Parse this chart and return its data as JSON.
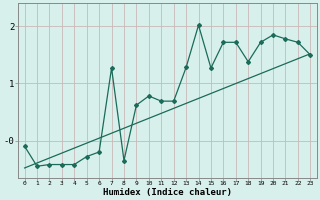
{
  "title": "",
  "xlabel": "Humidex (Indice chaleur)",
  "ylabel": "",
  "bg_color": "#d8f0ec",
  "grid_color": "#c8b8b8",
  "line_color": "#1a6b5a",
  "xlim": [
    -0.5,
    23.5
  ],
  "ylim": [
    -0.65,
    2.4
  ],
  "xticks": [
    0,
    1,
    2,
    3,
    4,
    5,
    6,
    7,
    8,
    9,
    10,
    11,
    12,
    13,
    14,
    15,
    16,
    17,
    18,
    19,
    20,
    21,
    22,
    23
  ],
  "yticks": [
    0,
    1,
    2
  ],
  "ytick_labels": [
    "-0",
    "1",
    "2"
  ],
  "data_x": [
    0,
    1,
    2,
    3,
    4,
    5,
    6,
    7,
    8,
    9,
    10,
    11,
    12,
    13,
    14,
    15,
    16,
    17,
    18,
    19,
    20,
    21,
    22,
    23
  ],
  "data_y": [
    -0.1,
    -0.45,
    -0.42,
    -0.42,
    -0.42,
    -0.28,
    -0.2,
    1.27,
    -0.35,
    0.62,
    0.78,
    0.69,
    0.69,
    1.28,
    2.02,
    1.27,
    1.72,
    1.72,
    1.38,
    1.72,
    1.85,
    1.78,
    1.72,
    1.5
  ],
  "trend_x": [
    0,
    23
  ],
  "trend_y": [
    -0.48,
    1.52
  ]
}
